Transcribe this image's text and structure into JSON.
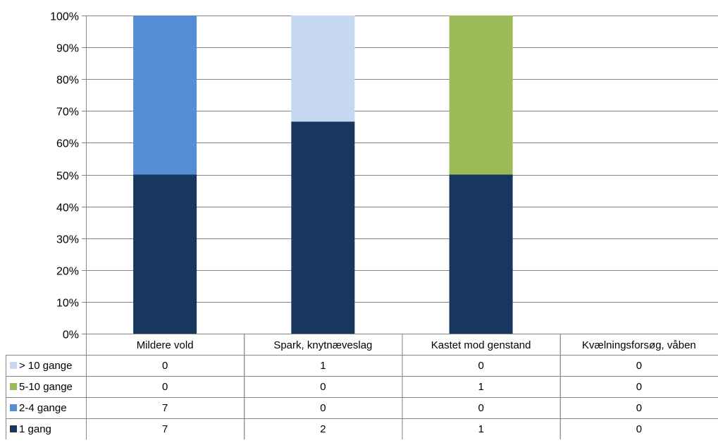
{
  "chart_data": {
    "type": "bar",
    "stacked": "percent",
    "categories": [
      "Mildere vold",
      "Spark, knytnæveslag",
      "Kastet mod genstand",
      "Kvælningsforsøg, våben"
    ],
    "series": [
      {
        "name": "1 gang",
        "values": [
          7,
          2,
          1,
          0
        ],
        "color": "#17375e"
      },
      {
        "name": "2-4 gange",
        "values": [
          7,
          0,
          0,
          0
        ],
        "color": "#558ed5"
      },
      {
        "name": "5-10 gange",
        "values": [
          0,
          0,
          1,
          0
        ],
        "color": "#9bbb59"
      },
      {
        "name": "> 10 gange",
        "values": [
          0,
          1,
          0,
          0
        ],
        "color": "#c6d9f1"
      }
    ],
    "table_row_order": [
      "> 10 gange",
      "5-10 gange",
      "2-4 gange",
      "1 gang"
    ],
    "y_ticks": [
      "0%",
      "10%",
      "20%",
      "30%",
      "40%",
      "50%",
      "60%",
      "70%",
      "80%",
      "90%",
      "100%"
    ],
    "ylim": [
      0,
      100
    ],
    "y_format": "percent",
    "grid": true,
    "legend": "data-table",
    "title": "",
    "xlabel": "",
    "ylabel": ""
  },
  "colors": {
    "gridline": "#868686",
    "axis": "#868686",
    "table_border": "#868686"
  }
}
